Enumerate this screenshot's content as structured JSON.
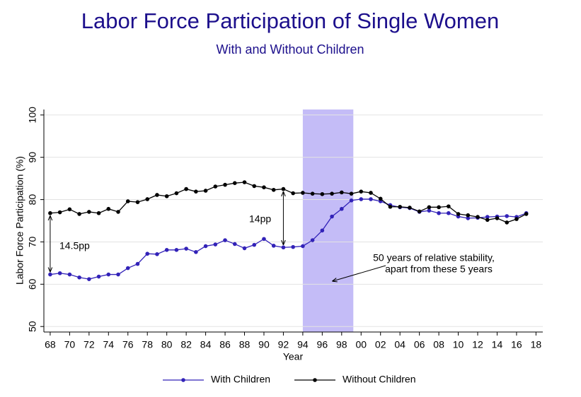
{
  "chart_data": {
    "type": "line",
    "title": "Labor Force Participation of Single Women",
    "subtitle": "With and Without Children",
    "x_label": "Year",
    "y_label": "Labor Force Participation (%)",
    "x": [
      1968,
      1969,
      1970,
      1971,
      1972,
      1973,
      1974,
      1975,
      1976,
      1977,
      1978,
      1979,
      1980,
      1981,
      1982,
      1983,
      1984,
      1985,
      1986,
      1987,
      1988,
      1989,
      1990,
      1991,
      1992,
      1993,
      1994,
      1995,
      1996,
      1997,
      1998,
      1999,
      2000,
      2001,
      2002,
      2003,
      2004,
      2005,
      2006,
      2007,
      2008,
      2009,
      2010,
      2011,
      2012,
      2013,
      2014,
      2015,
      2016,
      2017
    ],
    "series": [
      {
        "name": "With Children",
        "color": "#3222b8",
        "values": [
          62.3,
          62.6,
          62.3,
          61.6,
          61.2,
          61.8,
          62.3,
          62.3,
          63.8,
          64.8,
          67.2,
          67.1,
          68.1,
          68.1,
          68.4,
          67.6,
          69.0,
          69.4,
          70.4,
          69.5,
          68.5,
          69.3,
          70.7,
          69.1,
          68.7,
          68.8,
          69.0,
          70.4,
          72.7,
          76.0,
          77.8,
          79.8,
          80.1,
          80.1,
          79.6,
          78.7,
          78.2,
          78.0,
          77.1,
          77.4,
          76.8,
          76.8,
          76.0,
          75.6,
          75.7,
          75.9,
          76.0,
          76.1,
          75.9,
          76.8
        ]
      },
      {
        "name": "Without Children",
        "color": "#000000",
        "values": [
          76.8,
          77.0,
          77.7,
          76.6,
          77.1,
          76.8,
          77.8,
          77.1,
          79.6,
          79.4,
          80.1,
          81.1,
          80.8,
          81.5,
          82.5,
          81.9,
          82.1,
          83.1,
          83.5,
          83.9,
          84.1,
          83.2,
          82.9,
          82.3,
          82.5,
          81.5,
          81.6,
          81.4,
          81.3,
          81.4,
          81.7,
          81.4,
          81.9,
          81.6,
          80.2,
          78.3,
          78.3,
          78.1,
          77.2,
          78.2,
          78.2,
          78.4,
          76.6,
          76.3,
          75.9,
          75.2,
          75.6,
          74.6,
          75.4,
          76.6
        ]
      }
    ],
    "xlim": [
      1967.35,
      2018.7
    ],
    "ylim": [
      48.7,
      101.3
    ],
    "xticks": [
      {
        "value": 1968,
        "label": "68"
      },
      {
        "value": 1970,
        "label": "70"
      },
      {
        "value": 1972,
        "label": "72"
      },
      {
        "value": 1974,
        "label": "74"
      },
      {
        "value": 1976,
        "label": "76"
      },
      {
        "value": 1978,
        "label": "78"
      },
      {
        "value": 1980,
        "label": "80"
      },
      {
        "value": 1982,
        "label": "82"
      },
      {
        "value": 1984,
        "label": "84"
      },
      {
        "value": 1986,
        "label": "86"
      },
      {
        "value": 1988,
        "label": "88"
      },
      {
        "value": 1990,
        "label": "90"
      },
      {
        "value": 1992,
        "label": "92"
      },
      {
        "value": 1994,
        "label": "94"
      },
      {
        "value": 1996,
        "label": "96"
      },
      {
        "value": 1998,
        "label": "98"
      },
      {
        "value": 2000,
        "label": "00"
      },
      {
        "value": 2002,
        "label": "02"
      },
      {
        "value": 2004,
        "label": "04"
      },
      {
        "value": 2006,
        "label": "06"
      },
      {
        "value": 2008,
        "label": "08"
      },
      {
        "value": 2010,
        "label": "10"
      },
      {
        "value": 2012,
        "label": "12"
      },
      {
        "value": 2014,
        "label": "14"
      },
      {
        "value": 2016,
        "label": "16"
      },
      {
        "value": 2018,
        "label": "18"
      }
    ],
    "yticks": [
      50,
      60,
      70,
      80,
      90,
      100
    ],
    "grid": true,
    "shaded_region": [
      1994,
      1999.2
    ],
    "shaded_color": "#c4bcf7",
    "annotations": [
      "14.5pp",
      "14pp",
      "50 years of relative stability,",
      "apart from these 5 years"
    ]
  }
}
